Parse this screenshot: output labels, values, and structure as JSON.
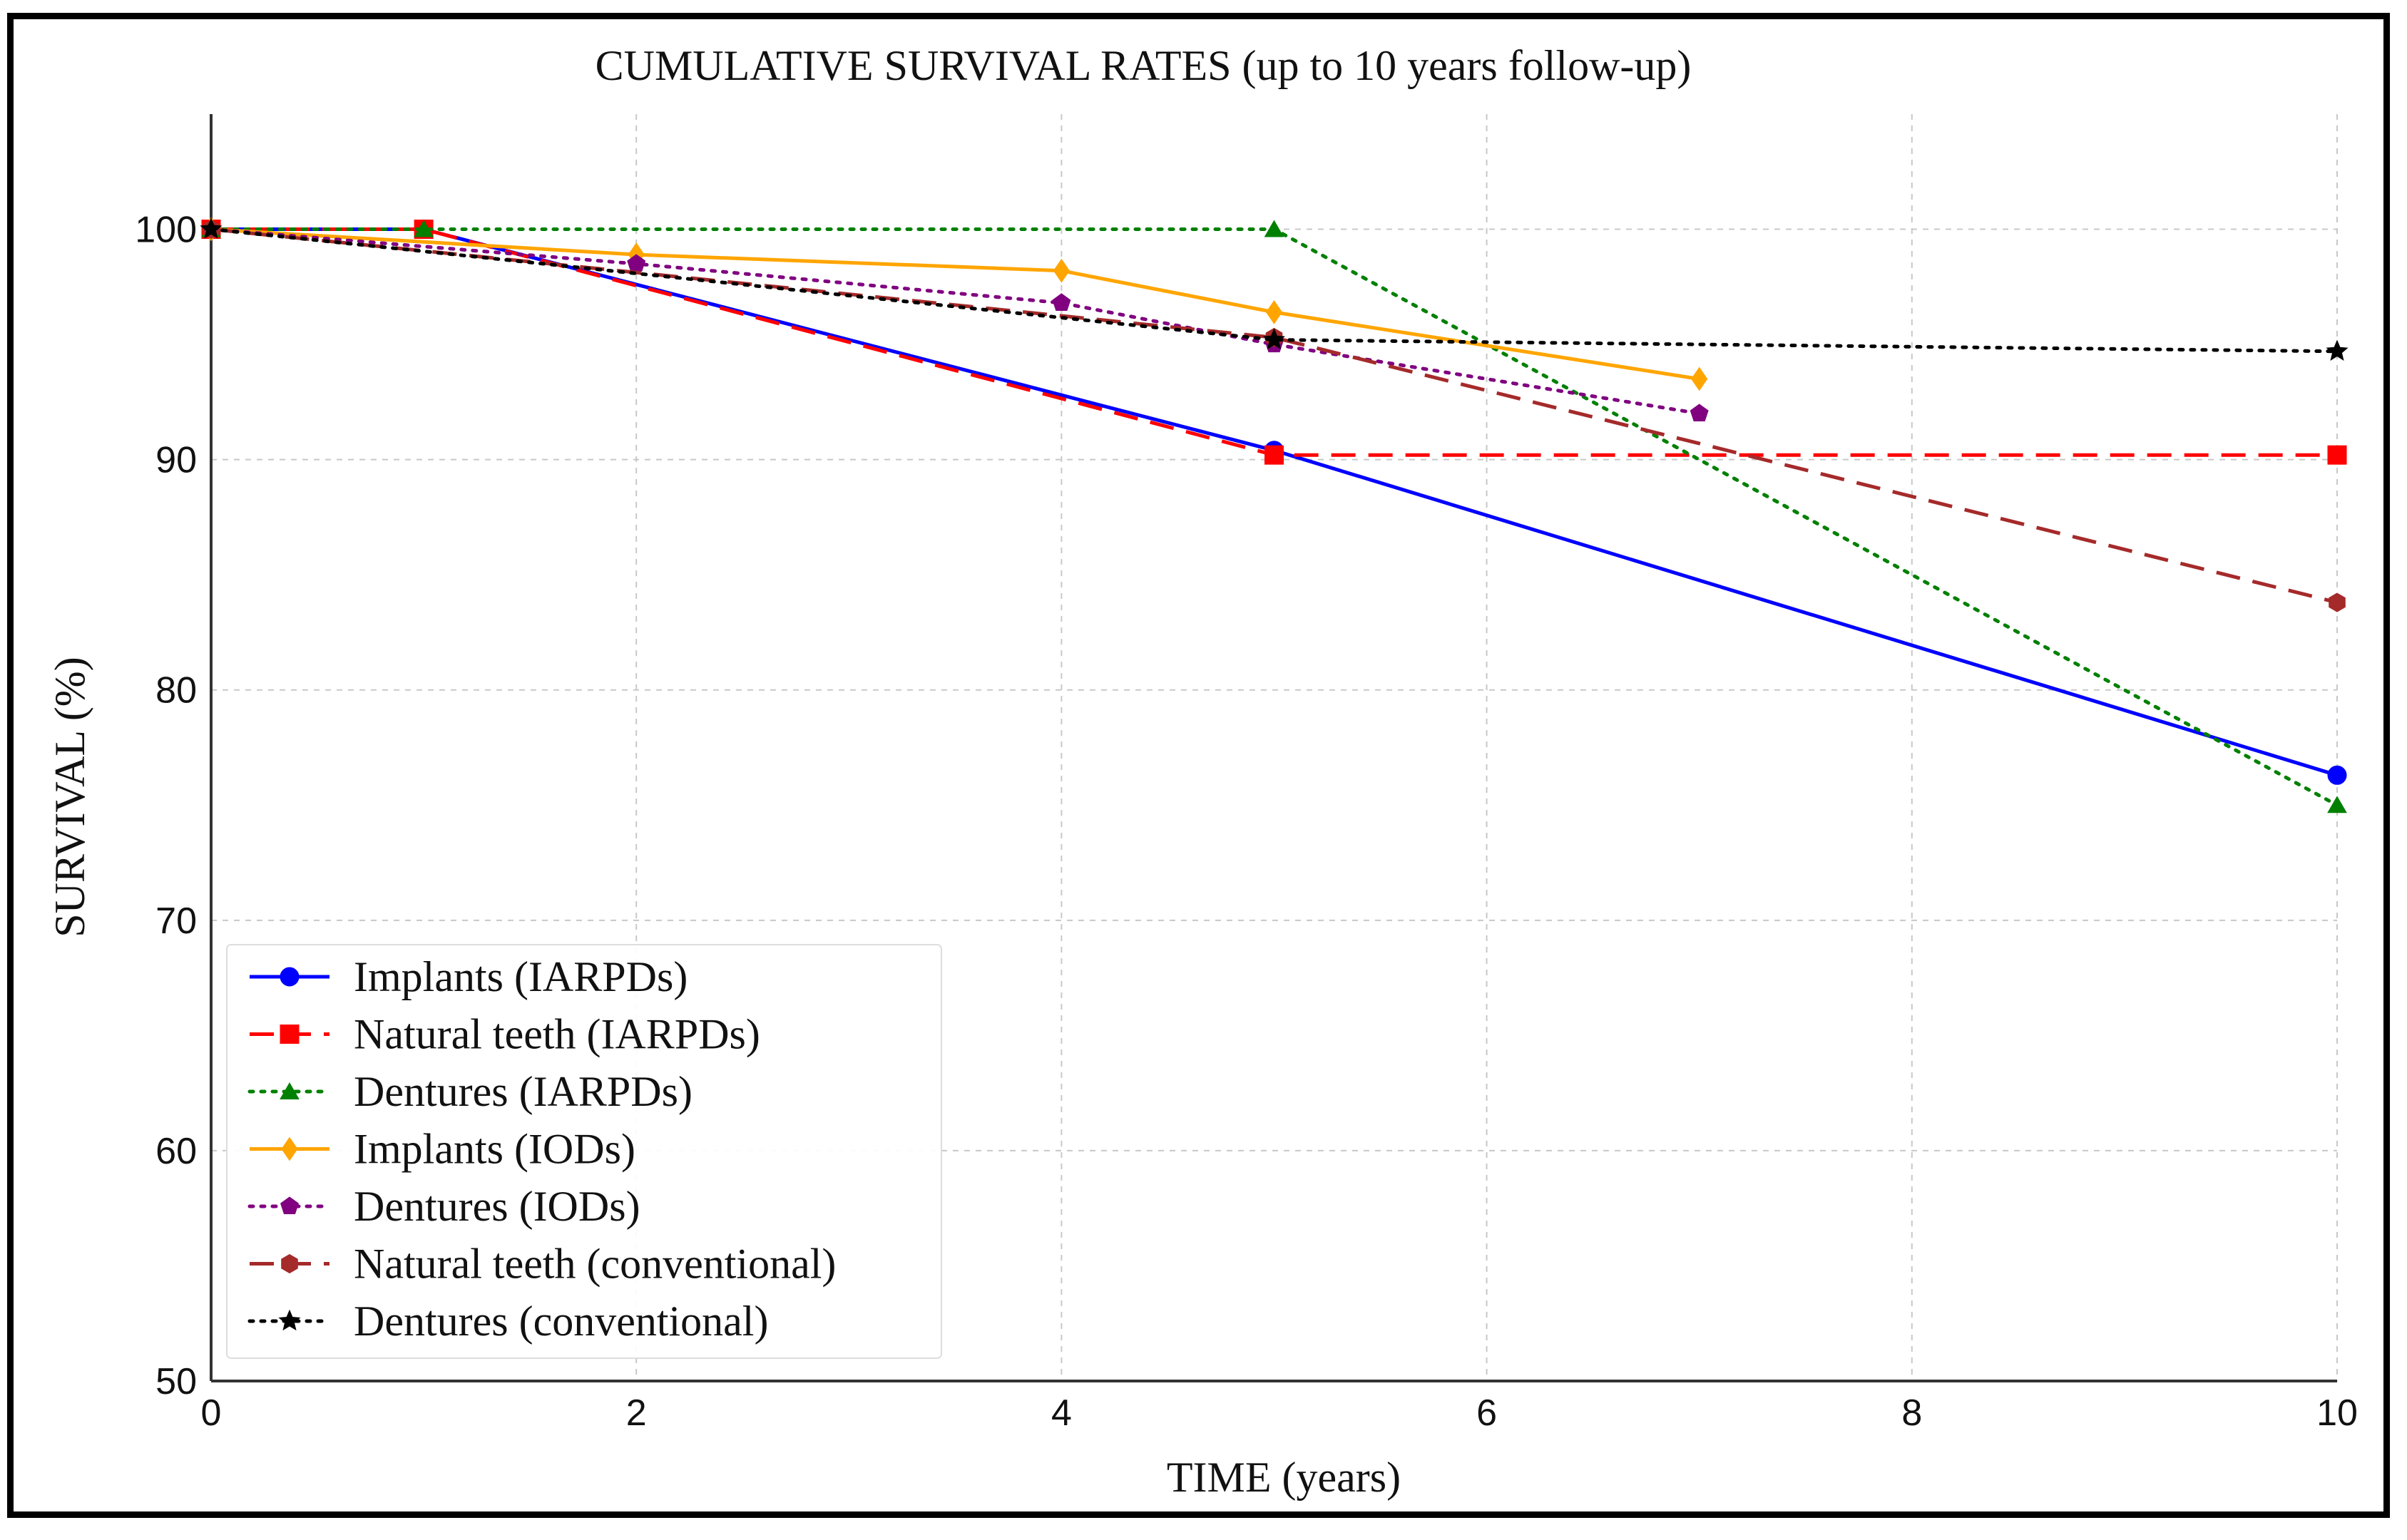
{
  "chart_data": {
    "type": "line",
    "title": "CUMULATIVE SURVIVAL RATES (up to 10 years follow-up)",
    "xlabel": "TIME (years)",
    "ylabel": "SURVIVAL (%)",
    "xlim": [
      0,
      10
    ],
    "ylim": [
      50,
      105
    ],
    "xticks": [
      0,
      2,
      4,
      6,
      8,
      10
    ],
    "yticks": [
      50,
      60,
      70,
      80,
      90,
      100
    ],
    "grid": true,
    "legend_position": "lower-left",
    "series": [
      {
        "name": "Implants (IARPDs)",
        "color": "#0000ff",
        "line_style": "solid",
        "marker": "circle",
        "points": [
          [
            0,
            100
          ],
          [
            1,
            100
          ],
          [
            5,
            90.4
          ],
          [
            10,
            76.3
          ]
        ]
      },
      {
        "name": "Natural teeth (IARPDs)",
        "color": "#ff0000",
        "line_style": "dashed",
        "marker": "square",
        "points": [
          [
            0,
            100
          ],
          [
            1,
            100
          ],
          [
            5,
            90.2
          ],
          [
            10,
            90.2
          ]
        ]
      },
      {
        "name": "Dentures (IARPDs)",
        "color": "#008000",
        "line_style": "dotted",
        "marker": "triangle",
        "points": [
          [
            0,
            100
          ],
          [
            1,
            100
          ],
          [
            5,
            100
          ],
          [
            10,
            75
          ]
        ]
      },
      {
        "name": "Implants (IODs)",
        "color": "#ffa500",
        "line_style": "solid",
        "marker": "diamond",
        "points": [
          [
            0,
            100
          ],
          [
            2,
            98.9
          ],
          [
            4,
            98.2
          ],
          [
            5,
            96.4
          ],
          [
            7,
            93.5
          ]
        ]
      },
      {
        "name": "Dentures (IODs)",
        "color": "#800080",
        "line_style": "dotted",
        "marker": "pentagon",
        "points": [
          [
            0,
            100
          ],
          [
            2,
            98.5
          ],
          [
            4,
            96.8
          ],
          [
            5,
            95
          ],
          [
            7,
            92
          ]
        ]
      },
      {
        "name": "Natural teeth (conventional)",
        "color": "#a52a2a",
        "line_style": "dashed",
        "marker": "hexagon",
        "points": [
          [
            0,
            100
          ],
          [
            5,
            95.3
          ],
          [
            10,
            83.8
          ]
        ]
      },
      {
        "name": "Dentures (conventional)",
        "color": "#000000",
        "line_style": "dotted",
        "marker": "star",
        "points": [
          [
            0,
            100
          ],
          [
            5,
            95.2
          ],
          [
            10,
            94.7
          ]
        ]
      }
    ]
  }
}
